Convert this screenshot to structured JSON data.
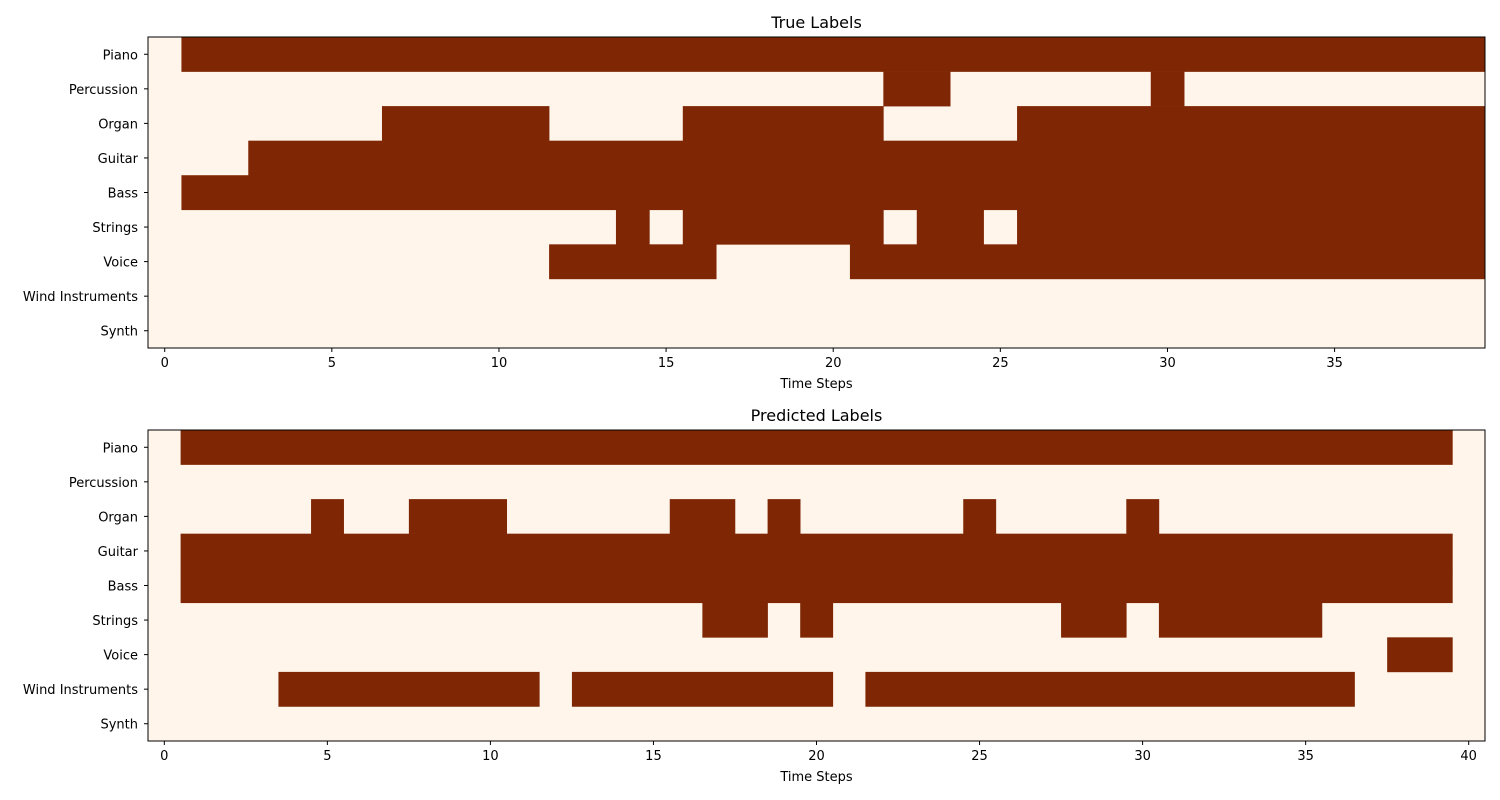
{
  "colors": {
    "on": "#7f2704",
    "off": "#fff5eb",
    "axis": "#000000"
  },
  "chart_data": [
    {
      "type": "heatmap",
      "title": "True Labels",
      "xlabel": "Time Steps",
      "ylabel": "",
      "xlim": [
        -0.5,
        39.5
      ],
      "xticks": [
        0,
        5,
        10,
        15,
        20,
        25,
        30,
        35
      ],
      "ylabels": [
        "Piano",
        "Percussion",
        "Organ",
        "Guitar",
        "Bass",
        "Strings",
        "Voice",
        "Wind Instruments",
        "Synth"
      ],
      "rows": [
        [
          0,
          1,
          1,
          1,
          1,
          1,
          1,
          1,
          1,
          1,
          1,
          1,
          1,
          1,
          1,
          1,
          1,
          1,
          1,
          1,
          1,
          1,
          1,
          1,
          1,
          1,
          1,
          1,
          1,
          1,
          1,
          1,
          1,
          1,
          1,
          1,
          1,
          1,
          1,
          1
        ],
        [
          0,
          0,
          0,
          0,
          0,
          0,
          0,
          0,
          0,
          0,
          0,
          0,
          0,
          0,
          0,
          0,
          0,
          0,
          0,
          0,
          0,
          0,
          1,
          1,
          0,
          0,
          0,
          0,
          0,
          0,
          1,
          0,
          0,
          0,
          0,
          0,
          0,
          0,
          0,
          0
        ],
        [
          0,
          0,
          0,
          0,
          0,
          0,
          0,
          1,
          1,
          1,
          1,
          1,
          0,
          0,
          0,
          0,
          1,
          1,
          1,
          1,
          1,
          1,
          0,
          0,
          0,
          0,
          1,
          1,
          1,
          1,
          1,
          1,
          1,
          1,
          1,
          1,
          1,
          1,
          1,
          1
        ],
        [
          0,
          0,
          0,
          1,
          1,
          1,
          1,
          1,
          1,
          1,
          1,
          1,
          1,
          1,
          1,
          1,
          1,
          1,
          1,
          1,
          1,
          1,
          1,
          1,
          1,
          1,
          1,
          1,
          1,
          1,
          1,
          1,
          1,
          1,
          1,
          1,
          1,
          1,
          1,
          1
        ],
        [
          0,
          1,
          1,
          1,
          1,
          1,
          1,
          1,
          1,
          1,
          1,
          1,
          1,
          1,
          1,
          1,
          1,
          1,
          1,
          1,
          1,
          1,
          1,
          1,
          1,
          1,
          1,
          1,
          1,
          1,
          1,
          1,
          1,
          1,
          1,
          1,
          1,
          1,
          1,
          1
        ],
        [
          0,
          0,
          0,
          0,
          0,
          0,
          0,
          0,
          0,
          0,
          0,
          0,
          0,
          0,
          1,
          0,
          1,
          1,
          1,
          1,
          1,
          1,
          0,
          1,
          1,
          0,
          1,
          1,
          1,
          1,
          1,
          1,
          1,
          1,
          1,
          1,
          1,
          1,
          1,
          1
        ],
        [
          0,
          0,
          0,
          0,
          0,
          0,
          0,
          0,
          0,
          0,
          0,
          0,
          1,
          1,
          1,
          1,
          1,
          0,
          0,
          0,
          0,
          1,
          1,
          1,
          1,
          1,
          1,
          1,
          1,
          1,
          1,
          1,
          1,
          1,
          1,
          1,
          1,
          1,
          1,
          1
        ],
        [
          0,
          0,
          0,
          0,
          0,
          0,
          0,
          0,
          0,
          0,
          0,
          0,
          0,
          0,
          0,
          0,
          0,
          0,
          0,
          0,
          0,
          0,
          0,
          0,
          0,
          0,
          0,
          0,
          0,
          0,
          0,
          0,
          0,
          0,
          0,
          0,
          0,
          0,
          0,
          0
        ],
        [
          0,
          0,
          0,
          0,
          0,
          0,
          0,
          0,
          0,
          0,
          0,
          0,
          0,
          0,
          0,
          0,
          0,
          0,
          0,
          0,
          0,
          0,
          0,
          0,
          0,
          0,
          0,
          0,
          0,
          0,
          0,
          0,
          0,
          0,
          0,
          0,
          0,
          0,
          0,
          0
        ]
      ]
    },
    {
      "type": "heatmap",
      "title": "Predicted Labels",
      "xlabel": "Time Steps",
      "ylabel": "",
      "xlim": [
        -0.5,
        40.5
      ],
      "xticks": [
        0,
        5,
        10,
        15,
        20,
        25,
        30,
        35,
        40
      ],
      "ylabels": [
        "Piano",
        "Percussion",
        "Organ",
        "Guitar",
        "Bass",
        "Strings",
        "Voice",
        "Wind Instruments",
        "Synth"
      ],
      "rows": [
        [
          0,
          1,
          1,
          1,
          1,
          1,
          1,
          1,
          1,
          1,
          1,
          1,
          1,
          1,
          1,
          1,
          1,
          1,
          1,
          1,
          1,
          1,
          1,
          1,
          1,
          1,
          1,
          1,
          1,
          1,
          1,
          1,
          1,
          1,
          1,
          1,
          1,
          1,
          1,
          1,
          0
        ],
        [
          0,
          0,
          0,
          0,
          0,
          0,
          0,
          0,
          0,
          0,
          0,
          0,
          0,
          0,
          0,
          0,
          0,
          0,
          0,
          0,
          0,
          0,
          0,
          0,
          0,
          0,
          0,
          0,
          0,
          0,
          0,
          0,
          0,
          0,
          0,
          0,
          0,
          0,
          0,
          0,
          0
        ],
        [
          0,
          0,
          0,
          0,
          0,
          1,
          0,
          0,
          1,
          1,
          1,
          0,
          0,
          0,
          0,
          0,
          1,
          1,
          0,
          1,
          0,
          0,
          0,
          0,
          0,
          1,
          0,
          0,
          0,
          0,
          1,
          0,
          0,
          0,
          0,
          0,
          0,
          0,
          0,
          0,
          0
        ],
        [
          0,
          1,
          1,
          1,
          1,
          1,
          1,
          1,
          1,
          1,
          1,
          1,
          1,
          1,
          1,
          1,
          1,
          1,
          1,
          1,
          1,
          1,
          1,
          1,
          1,
          1,
          1,
          1,
          1,
          1,
          1,
          1,
          1,
          1,
          1,
          1,
          1,
          1,
          1,
          1,
          0
        ],
        [
          0,
          1,
          1,
          1,
          1,
          1,
          1,
          1,
          1,
          1,
          1,
          1,
          1,
          1,
          1,
          1,
          1,
          1,
          1,
          1,
          1,
          1,
          1,
          1,
          1,
          1,
          1,
          1,
          1,
          1,
          1,
          1,
          1,
          1,
          1,
          1,
          1,
          1,
          1,
          1,
          0
        ],
        [
          0,
          0,
          0,
          0,
          0,
          0,
          0,
          0,
          0,
          0,
          0,
          0,
          0,
          0,
          0,
          0,
          0,
          1,
          1,
          0,
          1,
          0,
          0,
          0,
          0,
          0,
          0,
          0,
          1,
          1,
          0,
          1,
          1,
          1,
          1,
          1,
          0,
          0,
          0,
          0,
          0
        ],
        [
          0,
          0,
          0,
          0,
          0,
          0,
          0,
          0,
          0,
          0,
          0,
          0,
          0,
          0,
          0,
          0,
          0,
          0,
          0,
          0,
          0,
          0,
          0,
          0,
          0,
          0,
          0,
          0,
          0,
          0,
          0,
          0,
          0,
          0,
          0,
          0,
          0,
          0,
          1,
          1,
          0
        ],
        [
          0,
          0,
          0,
          0,
          1,
          1,
          1,
          1,
          1,
          1,
          1,
          1,
          0,
          1,
          1,
          1,
          1,
          1,
          1,
          1,
          1,
          0,
          1,
          1,
          1,
          1,
          1,
          1,
          1,
          1,
          1,
          1,
          1,
          1,
          1,
          1,
          1,
          0,
          0,
          0,
          0
        ],
        [
          0,
          0,
          0,
          0,
          0,
          0,
          0,
          0,
          0,
          0,
          0,
          0,
          0,
          0,
          0,
          0,
          0,
          0,
          0,
          0,
          0,
          0,
          0,
          0,
          0,
          0,
          0,
          0,
          0,
          0,
          0,
          0,
          0,
          0,
          0,
          0,
          0,
          0,
          0,
          0,
          0
        ]
      ]
    }
  ]
}
